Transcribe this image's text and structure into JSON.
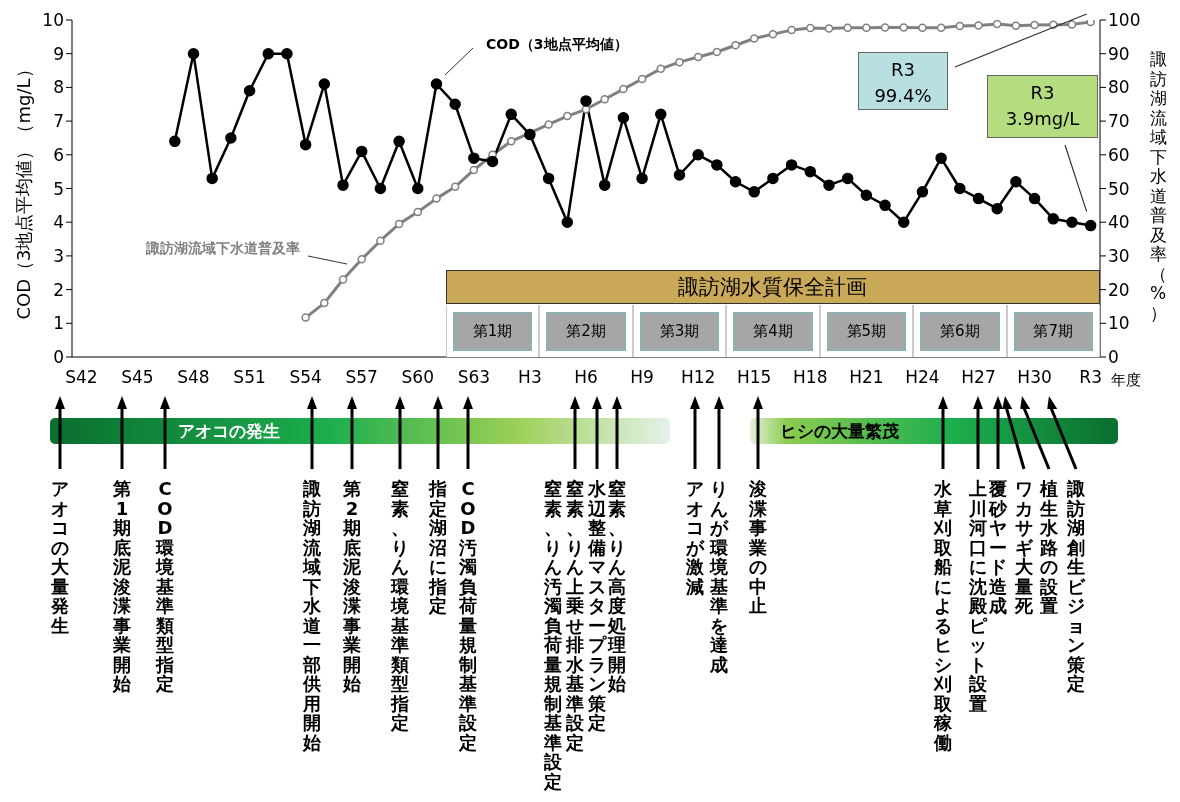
{
  "chart_data": {
    "type": "line",
    "ylabel": "COD（3地点平均値）（mg/L）",
    "y2label": "諏訪湖流域下水道普及率（%）",
    "xlabel": "年度",
    "categories": [
      "S42",
      null,
      null,
      "S45",
      null,
      null,
      "S48",
      null,
      null,
      "S51",
      null,
      null,
      "S54",
      null,
      null,
      "S57",
      null,
      null,
      "S60",
      null,
      null,
      "S63",
      null,
      null,
      "H3",
      null,
      null,
      "H6",
      null,
      null,
      "H9",
      null,
      null,
      "H12",
      null,
      null,
      "H15",
      null,
      null,
      "H18",
      null,
      null,
      "H21",
      null,
      null,
      "H24",
      null,
      null,
      "H27",
      null,
      null,
      "H30",
      null,
      null,
      "R3"
    ],
    "series": [
      {
        "name": "COD（3地点平均値）",
        "color": "#000000",
        "values": [
          null,
          null,
          null,
          null,
          null,
          6.4,
          9.0,
          5.3,
          6.5,
          7.9,
          9.0,
          9.0,
          6.3,
          8.1,
          5.1,
          6.1,
          5.0,
          6.4,
          5.0,
          8.1,
          7.5,
          5.9,
          5.8,
          7.2,
          6.6,
          5.3,
          4.0,
          7.6,
          5.1,
          7.1,
          5.3,
          7.2,
          5.4,
          6.0,
          5.7,
          5.2,
          4.9,
          5.3,
          5.7,
          5.5,
          5.1,
          5.3,
          4.8,
          4.5,
          4.0,
          4.9,
          5.9,
          5.0,
          4.7,
          4.4,
          5.2,
          4.7,
          4.1,
          4.0,
          3.9
        ]
      },
      {
        "name": "諏訪湖流域下水道普及率",
        "color": "#808080",
        "axis": "y2",
        "values": [
          null,
          null,
          null,
          null,
          null,
          null,
          null,
          null,
          null,
          null,
          null,
          null,
          11.7,
          16,
          23,
          29,
          34.5,
          39.5,
          43,
          47,
          50.5,
          55.5,
          60,
          64,
          66.5,
          69,
          71.5,
          73.5,
          76.5,
          79.5,
          82.5,
          85.5,
          87.5,
          89,
          90.5,
          92.5,
          94.5,
          95.8,
          97.0,
          97.6,
          97.5,
          97.7,
          97.7,
          97.8,
          97.8,
          97.7,
          97.7,
          98.2,
          98.4,
          98.8,
          98.3,
          98.5,
          98.6,
          98.7,
          99.4
        ]
      }
    ],
    "marker": "circle",
    "line_style": "solid",
    "ylim": [
      0,
      10
    ],
    "yticks": [
      0,
      1,
      2,
      3,
      4,
      5,
      6,
      7,
      8,
      9,
      10
    ],
    "y2lim": [
      0,
      100
    ],
    "y2ticks": [
      0,
      10,
      20,
      30,
      40,
      50,
      60,
      70,
      80,
      90,
      100
    ],
    "annotations": [
      "R3\n3.9mg/L",
      "R3\n99.4%",
      "諏訪湖水質保全計画",
      "第1期",
      "第2期",
      "第3期",
      "第4期",
      "第5期",
      "第6期",
      "第7期",
      "アオコの発生",
      "ヒシの大量繁茂",
      "アオコの大量発生",
      "第1期底泥浚渫事業開始",
      "COD環境基準類型指定",
      "諏訪湖流域下水道一部供用開始",
      "第2期底泥浚渫事業開始",
      "窒素、りん環境基準類型指定",
      "指定湖沼に指定",
      "COD汚濁負荷量規制基準設定",
      "窒素、りん汚濁負荷量規制基準設定",
      "窒素、りん上乗せ排水基準設定",
      "水辺整備マスタープラン策定",
      "窒素、りん高度処理開始",
      "アオコが激減",
      "りんが環境基準を達成",
      "浚渫事業の中止",
      "水草刈取船によるヒシ刈取稼働",
      "上川河口に沈殿ピット設置",
      "覆砂ヤード造成",
      "ワカサギ大量死",
      "植生水路の設置",
      "諏訪湖創生ビジョン策定"
    ]
  }
}
